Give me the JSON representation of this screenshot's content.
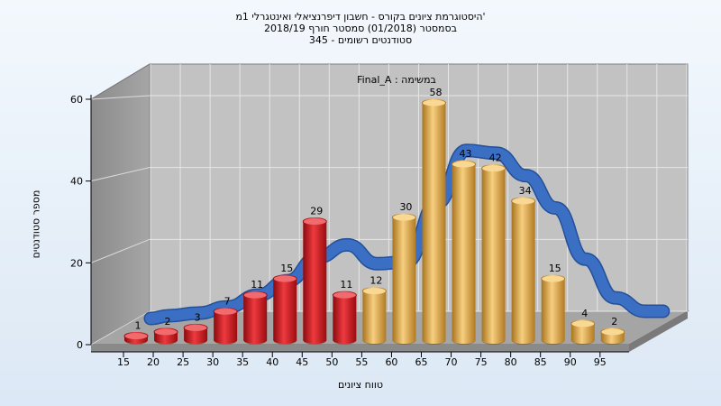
{
  "chart_data": {
    "type": "bar",
    "title_lines": [
      "היסטוגרמת ציונים בקורס - חשבון דיפרנציאלי ואינטגרלי 1מ'",
      "בסמסטר  (01/2018)  סמסטר חורף 2018/19",
      "סטודנטים רשומים - 345"
    ],
    "xlabel": "טווח ציונים",
    "ylabel": "מספר סטודנטים",
    "legend_label": "במשימה : Final_A",
    "ylim": [
      0,
      60
    ],
    "yticks": [
      "0",
      "20",
      "40",
      "60"
    ],
    "xticks": [
      "15",
      "20",
      "25",
      "30",
      "35",
      "40",
      "45",
      "50",
      "55",
      "60",
      "65",
      "70",
      "75",
      "80",
      "85",
      "90",
      "95"
    ],
    "values": [
      1,
      2,
      3,
      7,
      11,
      15,
      29,
      11,
      12,
      30,
      58,
      43,
      42,
      34,
      15,
      4,
      2
    ],
    "bar_colors": [
      "#d4141b",
      "#d4141b",
      "#d4141b",
      "#d4141b",
      "#d4141b",
      "#d4141b",
      "#d4141b",
      "#d4141b",
      "#e0a040",
      "#e0a040",
      "#e0a040",
      "#e0a040",
      "#e0a040",
      "#e0a040",
      "#e0a040",
      "#e0a040",
      "#e0a040"
    ],
    "curve_color": "#3a6fc4",
    "grid": true
  }
}
